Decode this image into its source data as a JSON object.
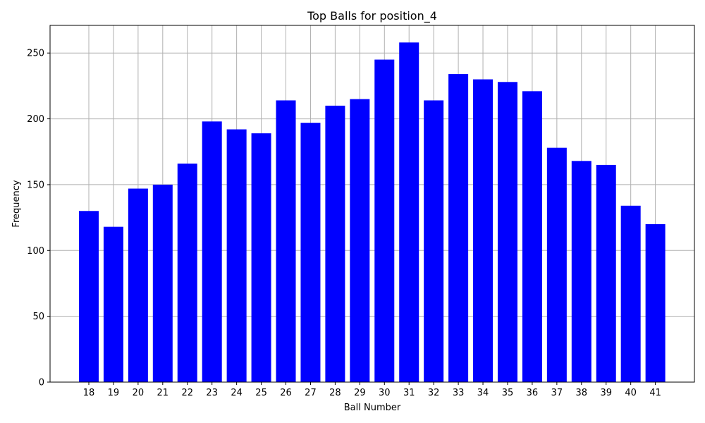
{
  "chart_data": {
    "type": "bar",
    "title": "Top Balls for position_4",
    "xlabel": "Ball Number",
    "ylabel": "Frequency",
    "categories": [
      "18",
      "19",
      "20",
      "21",
      "22",
      "23",
      "24",
      "25",
      "26",
      "27",
      "28",
      "29",
      "30",
      "31",
      "32",
      "33",
      "34",
      "35",
      "36",
      "37",
      "38",
      "39",
      "40",
      "41"
    ],
    "values": [
      130,
      118,
      147,
      150,
      166,
      198,
      192,
      189,
      214,
      197,
      210,
      215,
      245,
      258,
      214,
      234,
      230,
      228,
      221,
      178,
      168,
      165,
      134,
      120
    ],
    "ylim": [
      0,
      271
    ],
    "yticks": [
      0,
      50,
      100,
      150,
      200,
      250
    ],
    "grid": true,
    "colors": {
      "bar": "#0000ff",
      "grid": "#b0b0b0",
      "axis": "#000000"
    }
  }
}
